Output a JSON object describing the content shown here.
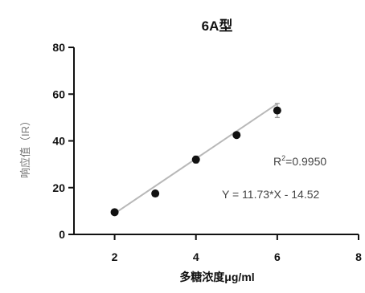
{
  "chart_data": {
    "type": "scatter",
    "title": "6A型",
    "xlabel": "多糖浓度μg/ml",
    "ylabel": "响应值（IR）",
    "xlim": [
      1,
      8
    ],
    "ylim": [
      0,
      80
    ],
    "x_ticks": [
      2,
      4,
      6,
      8
    ],
    "y_ticks": [
      0,
      20,
      40,
      60,
      80
    ],
    "grid": false,
    "series": [
      {
        "points": [
          {
            "x": 2,
            "y": 9.5,
            "err": 0.5
          },
          {
            "x": 3,
            "y": 17.5,
            "err": 0.8
          },
          {
            "x": 4,
            "y": 32,
            "err": 1.5
          },
          {
            "x": 5,
            "y": 42.5,
            "err": 0.8
          },
          {
            "x": 6,
            "y": 53,
            "err": 3
          }
        ]
      }
    ],
    "fit_line": {
      "slope": 11.73,
      "intercept": -14.52,
      "x_range": [
        2,
        6
      ]
    },
    "annotations": {
      "r2_prefix": "R",
      "r2_sup": "2",
      "r2_value": "=0.9950",
      "equation": "Y = 11.73*X - 14.52"
    },
    "colors": {
      "points": "#111111",
      "fit_line": "#b8b8b8",
      "axes": "#111111",
      "ylabel": "#777777"
    }
  }
}
